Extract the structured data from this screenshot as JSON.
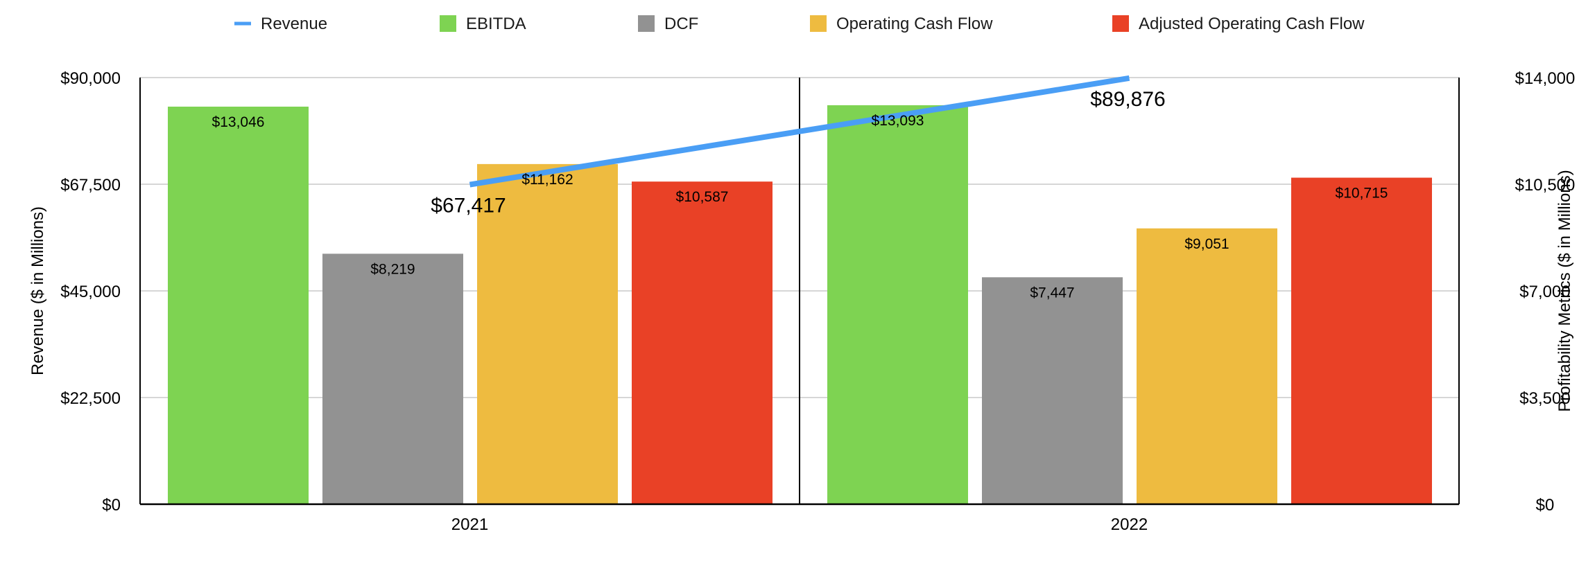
{
  "chart_data": {
    "type": "bar",
    "categories": [
      "2021",
      "2022"
    ],
    "legend_position": "top",
    "grid": true,
    "y_left": {
      "label": "Revenue ($ in Millions)",
      "range": [
        0,
        90000
      ],
      "ticks": [
        "$0",
        "$22,500",
        "$45,000",
        "$67,500",
        "$90,000"
      ]
    },
    "y_right": {
      "label": "Profitability Metrics ($ in Millions)",
      "range": [
        0,
        14000
      ],
      "ticks": [
        "$0",
        "$3,500",
        "$7,000",
        "$10,500",
        "$14,000"
      ]
    },
    "line_series": {
      "name": "Revenue",
      "axis": "left",
      "color": "#4A9EF5",
      "values": [
        67417,
        89876
      ],
      "labels": [
        "$67,417",
        "$89,876"
      ]
    },
    "series": [
      {
        "name": "EBITDA",
        "color": "#7ED352",
        "values": [
          13046,
          13093
        ],
        "labels": [
          "$13,046",
          "$13,093"
        ]
      },
      {
        "name": "DCF",
        "color": "#929292",
        "values": [
          8219,
          7447
        ],
        "labels": [
          "$8,219",
          "$7,447"
        ]
      },
      {
        "name": "Operating Cash Flow",
        "color": "#EEBB40",
        "values": [
          11162,
          9051
        ],
        "labels": [
          "$11,162",
          "$9,051"
        ]
      },
      {
        "name": "Adjusted Operating Cash Flow",
        "color": "#E94126",
        "values": [
          10587,
          10715
        ],
        "labels": [
          "$10,587",
          "$10,715"
        ]
      }
    ]
  }
}
